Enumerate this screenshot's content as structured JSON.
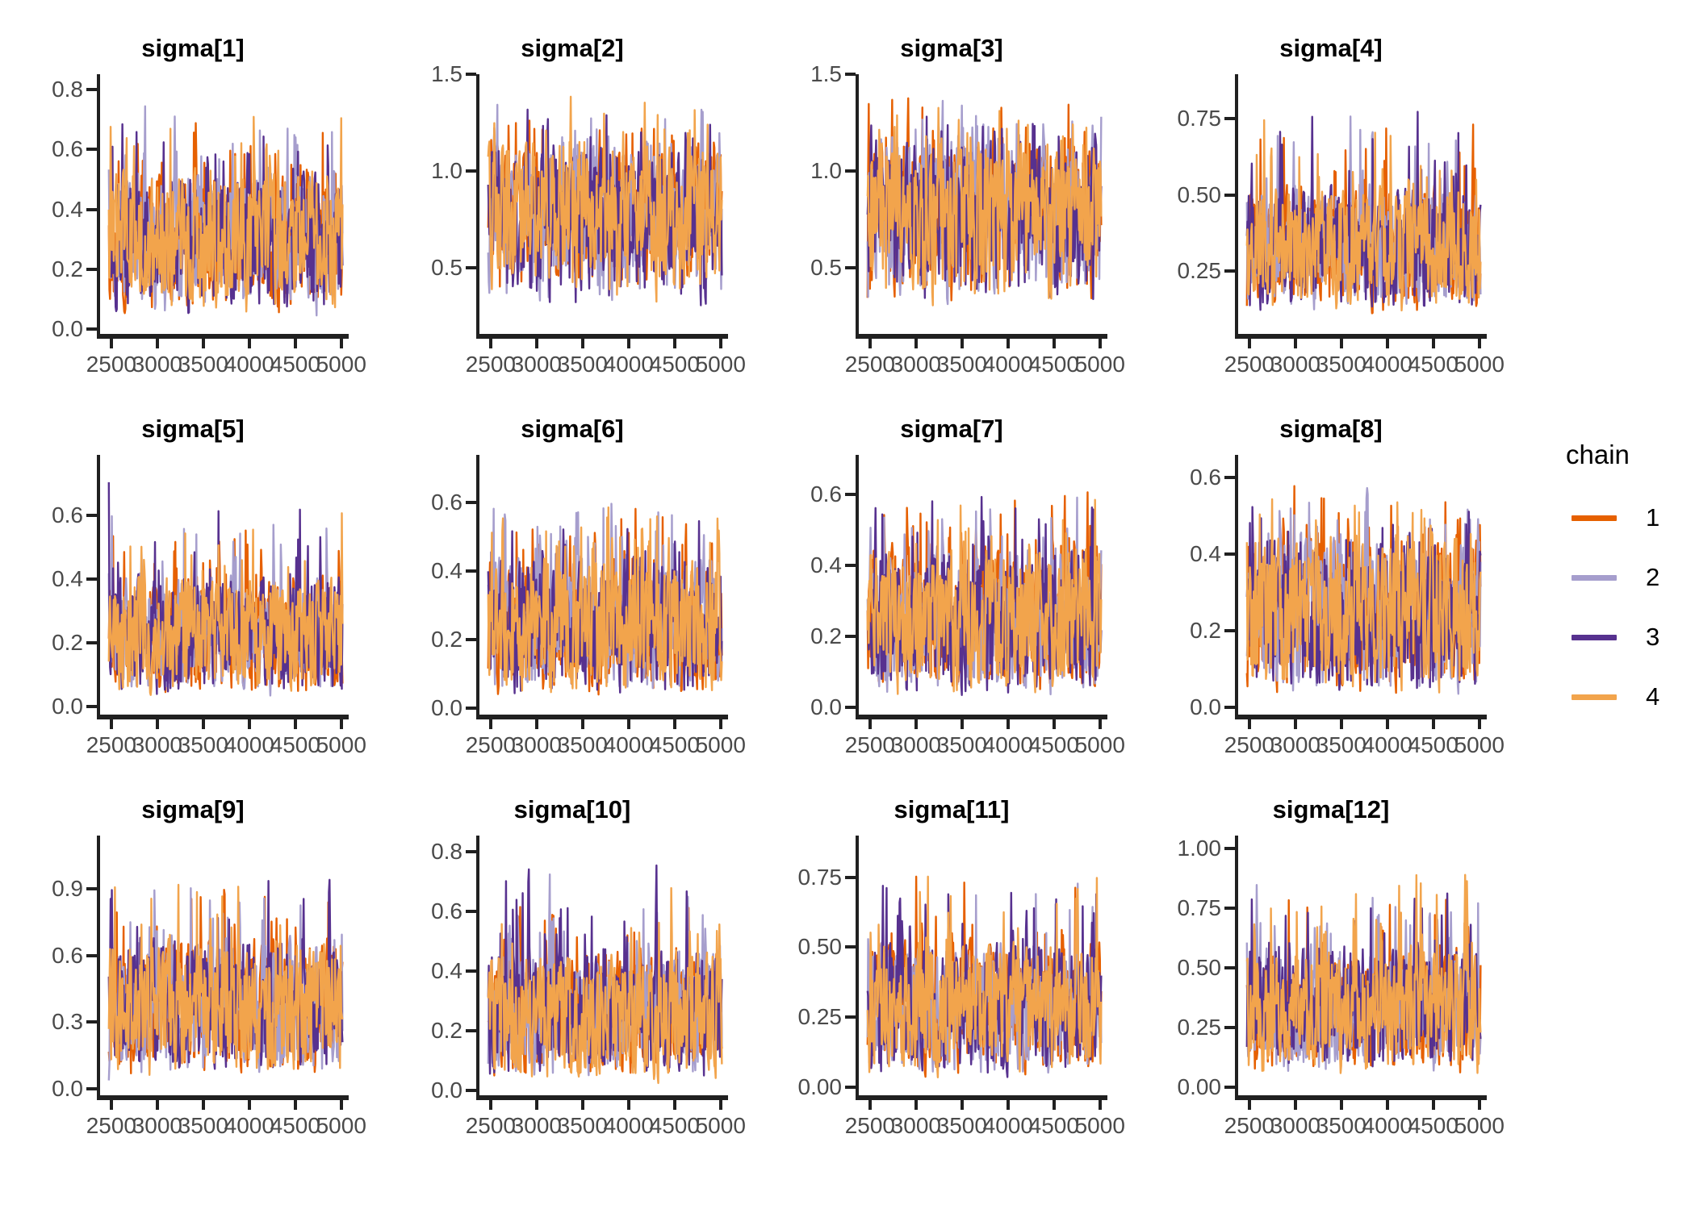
{
  "figure": {
    "kind": "mcmc-trace-plot-grid",
    "background": "#FFFFFF",
    "axis_color": "#202020",
    "tick_label_color": "#4A4A4A"
  },
  "legend": {
    "title": "chain",
    "items": [
      {
        "label": "1",
        "color": "#E66000"
      },
      {
        "label": "2",
        "color": "#A69ECD"
      },
      {
        "label": "3",
        "color": "#57318F"
      },
      {
        "label": "4",
        "color": "#F2A44C"
      }
    ]
  },
  "chart_data": {
    "type": "line",
    "subtype": "mcmc-trace",
    "title": "",
    "xlabel": "",
    "ylabel": "",
    "grid": false,
    "legend_position": "right",
    "x_range": [
      2500,
      5000
    ],
    "x_ticks": [
      "2500",
      "3000",
      "3500",
      "4000",
      "4500",
      "5000"
    ],
    "x_tick_values": [
      2500,
      3000,
      3500,
      4000,
      4500,
      5000
    ],
    "chains": [
      "1",
      "2",
      "3",
      "4"
    ],
    "chain_colors": [
      "#E66000",
      "#A69ECD",
      "#57318F",
      "#F2A44C"
    ],
    "panels": [
      {
        "title": "sigma[1]",
        "ytick_labels": [
          "0.0",
          "0.2",
          "0.4",
          "0.6",
          "0.8"
        ],
        "ytick_values": [
          0,
          0.2,
          0.4,
          0.6,
          0.8
        ],
        "ylim": [
          -0.015,
          0.85
        ],
        "trace_band": [
          0.08,
          0.55
        ],
        "trace_max": 0.81,
        "trace_min": 0.03
      },
      {
        "title": "sigma[2]",
        "ytick_labels": [
          "0.5",
          "1.0",
          "1.5"
        ],
        "ytick_values": [
          0.5,
          1.0,
          1.5
        ],
        "ylim": [
          0.16,
          1.5
        ],
        "trace_band": [
          0.45,
          1.17
        ],
        "trace_max": 1.46,
        "trace_min": 0.25
      },
      {
        "title": "sigma[3]",
        "ytick_labels": [
          "0.5",
          "1.0",
          "1.5"
        ],
        "ytick_values": [
          0.5,
          1.0,
          1.5
        ],
        "ylim": [
          0.16,
          1.5
        ],
        "trace_band": [
          0.43,
          1.2
        ],
        "trace_max": 1.46,
        "trace_min": 0.25
      },
      {
        "title": "sigma[4]",
        "ytick_labels": [
          "0.25",
          "0.50",
          "0.75"
        ],
        "ytick_values": [
          0.25,
          0.5,
          0.75
        ],
        "ylim": [
          0.045,
          0.895
        ],
        "trace_band": [
          0.14,
          0.55
        ],
        "trace_max": 0.87,
        "trace_min": 0.1
      },
      {
        "title": "sigma[5]",
        "ytick_labels": [
          "0.0",
          "0.2",
          "0.4",
          "0.6"
        ],
        "ytick_values": [
          0,
          0.2,
          0.4,
          0.6
        ],
        "ylim": [
          -0.025,
          0.79
        ],
        "trace_band": [
          0.05,
          0.43
        ],
        "trace_max": 0.75,
        "trace_min": 0.02
      },
      {
        "title": "sigma[6]",
        "ytick_labels": [
          "0.0",
          "0.2",
          "0.4",
          "0.6"
        ],
        "ytick_values": [
          0,
          0.2,
          0.4,
          0.6
        ],
        "ylim": [
          -0.02,
          0.74
        ],
        "trace_band": [
          0.05,
          0.46
        ],
        "trace_max": 0.71,
        "trace_min": 0.02
      },
      {
        "title": "sigma[7]",
        "ytick_labels": [
          "0.0",
          "0.2",
          "0.4",
          "0.6"
        ],
        "ytick_values": [
          0,
          0.2,
          0.4,
          0.6
        ],
        "ylim": [
          -0.02,
          0.71
        ],
        "trace_band": [
          0.05,
          0.47
        ],
        "trace_max": 0.68,
        "trace_min": 0.02
      },
      {
        "title": "sigma[8]",
        "ytick_labels": [
          "0.0",
          "0.2",
          "0.4",
          "0.6"
        ],
        "ytick_values": [
          0,
          0.2,
          0.4,
          0.6
        ],
        "ylim": [
          -0.02,
          0.66
        ],
        "trace_band": [
          0.05,
          0.47
        ],
        "trace_max": 0.63,
        "trace_min": 0.02
      },
      {
        "title": "sigma[9]",
        "ytick_labels": [
          "0.0",
          "0.3",
          "0.6",
          "0.9"
        ],
        "ytick_values": [
          0,
          0.3,
          0.6,
          0.9
        ],
        "ylim": [
          -0.03,
          1.14
        ],
        "trace_band": [
          0.09,
          0.7
        ],
        "trace_max": 1.09,
        "trace_min": 0.03
      },
      {
        "title": "sigma[10]",
        "ytick_labels": [
          "0.0",
          "0.2",
          "0.4",
          "0.6",
          "0.8"
        ],
        "ytick_values": [
          0,
          0.2,
          0.4,
          0.6,
          0.8
        ],
        "ylim": [
          -0.015,
          0.855
        ],
        "trace_band": [
          0.05,
          0.49
        ],
        "trace_max": 0.81,
        "trace_min": 0.02
      },
      {
        "title": "sigma[11]",
        "ytick_labels": [
          "0.00",
          "0.25",
          "0.50",
          "0.75"
        ],
        "ytick_values": [
          0,
          0.25,
          0.5,
          0.75
        ],
        "ylim": [
          -0.03,
          0.9
        ],
        "trace_band": [
          0.06,
          0.54
        ],
        "trace_max": 0.88,
        "trace_min": 0.02
      },
      {
        "title": "sigma[12]",
        "ytick_labels": [
          "0.00",
          "0.25",
          "0.50",
          "0.75",
          "1.00"
        ],
        "ytick_values": [
          0,
          0.25,
          0.5,
          0.75,
          1.0
        ],
        "ylim": [
          -0.034,
          1.054
        ],
        "trace_band": [
          0.09,
          0.62
        ],
        "trace_max": 1.0,
        "trace_min": 0.03
      }
    ]
  }
}
